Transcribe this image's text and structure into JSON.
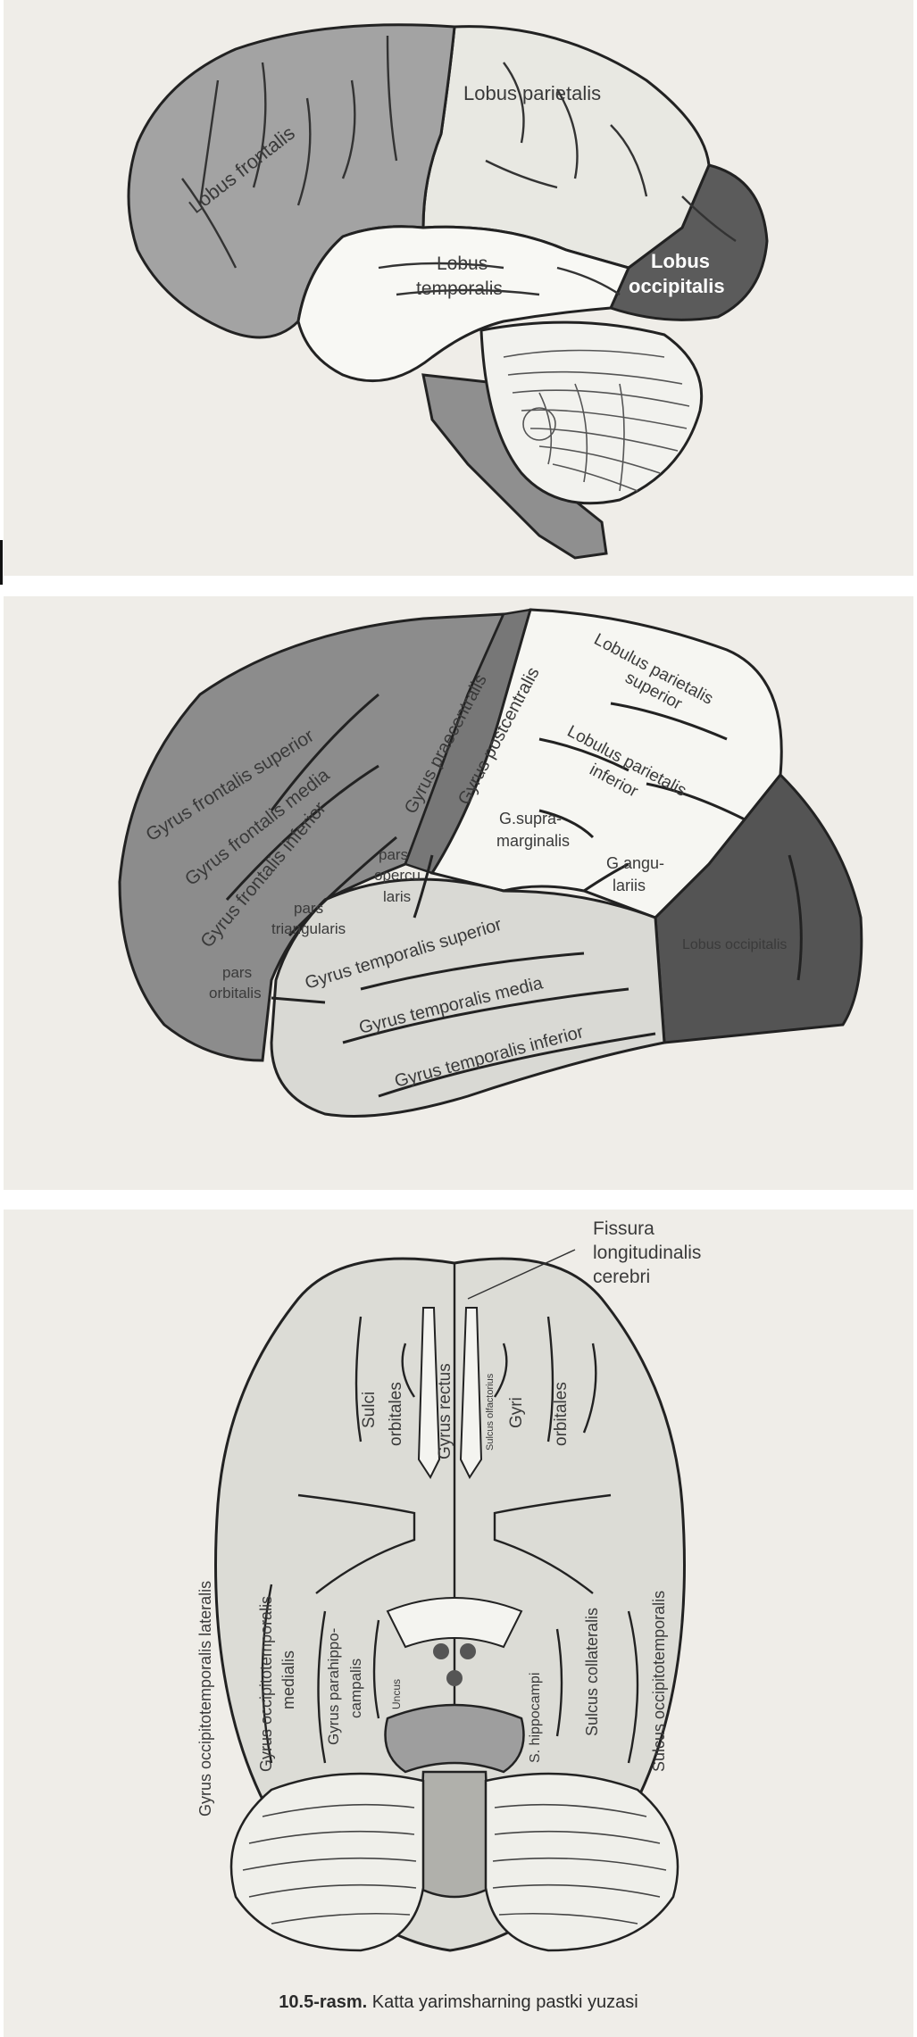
{
  "figure_1": {
    "labels": {
      "frontal": "Lobus frontalis",
      "parietal": "Lobus parietalis",
      "temporal_1": "Lobus",
      "temporal_2": "temporalis",
      "occipital_1": "Lobus",
      "occipital_2": "occipitalis"
    }
  },
  "figure_2": {
    "labels": {
      "gfs": "Gyrus frontalis superior",
      "gfm": "Gyrus frontalis media",
      "gfi": "Gyrus frontalis inferior",
      "gprc": "Gyrus praecentralis",
      "gpoc": "Gyrus postcentralis",
      "lps_1": "Lobulus parietalis",
      "lps_2": "superior",
      "lpi_1": "Lobulus parietalis",
      "lpi_2": "inferior",
      "gsm_1": "G.supra-",
      "gsm_2": "marginalis",
      "gang_1": "G.angu-",
      "gang_2": "lariis",
      "po_1": "pars",
      "po_2": "opercu",
      "po_3": "laris",
      "pt_1": "pars",
      "pt_2": "triangularis",
      "porb_1": "pars",
      "porb_2": "orbitalis",
      "gts": "Gyrus temporalis superior",
      "gtm": "Gyrus temporalis media",
      "gti": "Gyrus temporalis inferior",
      "occ": "Lobus occipitalis"
    }
  },
  "figure_3": {
    "labels": {
      "fissura_1": "Fissura",
      "fissura_2": "longitudinalis",
      "fissura_3": "cerebri",
      "sulci_1": "Sulci",
      "sulci_2": "orbitales",
      "gyrus_rectus": "Gyrus rectus",
      "sulcus_olf": "Sulcus olfactorius",
      "gyri_1": "Gyri",
      "gyri_2": "orbitales",
      "gotl": "Gyrus occipitotemporalis lateralis",
      "gotm_1": "Gyrus occipitotemporalis",
      "gotm_2": "medialis",
      "gph_1": "Gyrus parahippo-",
      "gph_2": "campalis",
      "uncus": "Uncus",
      "shippo": "S. hippocampi",
      "scoll": "Sulcus collateralis",
      "sot": "Sulcus occipitotemporalis"
    }
  },
  "caption": {
    "number": "10.5-rasm.",
    "text": "Katta yarimsharning pastki yuzasi"
  }
}
